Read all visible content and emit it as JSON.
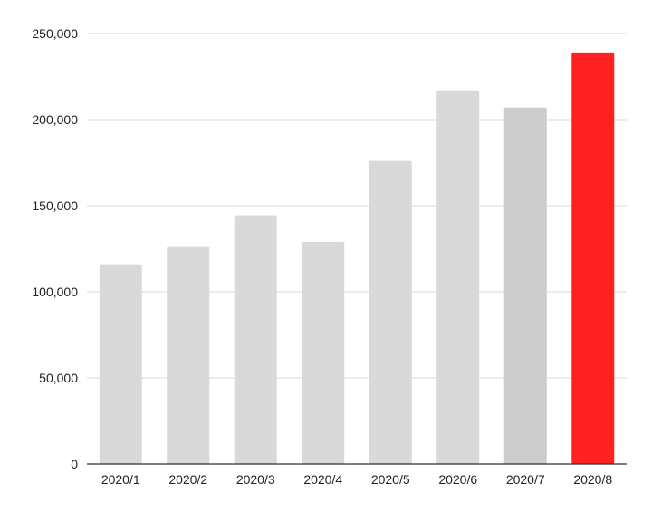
{
  "chart_data": {
    "type": "bar",
    "title": "",
    "xlabel": "",
    "ylabel": "",
    "categories": [
      "2020/1",
      "2020/2",
      "2020/3",
      "2020/4",
      "2020/5",
      "2020/6",
      "2020/7",
      "2020/8"
    ],
    "values": [
      116000,
      126500,
      144500,
      129000,
      176000,
      217000,
      207000,
      239000
    ],
    "bar_colors": [
      "#d9d9d9",
      "#d9d9d9",
      "#d9d9d9",
      "#d9d9d9",
      "#d9d9d9",
      "#d9d9d9",
      "#cccccc",
      "#ff2020"
    ],
    "ylim": [
      0,
      250000
    ],
    "yticks": [
      0,
      50000,
      100000,
      150000,
      200000,
      250000
    ],
    "ytick_labels": [
      "0",
      "50,000",
      "100,000",
      "150,000",
      "200,000",
      "250,000"
    ],
    "grid": true,
    "legend": "none"
  }
}
